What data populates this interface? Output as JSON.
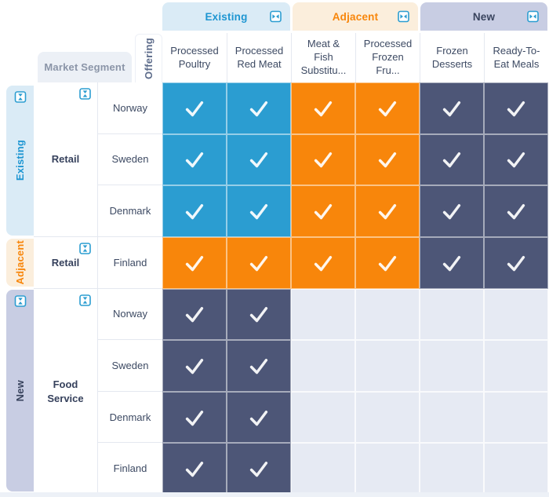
{
  "colors": {
    "existing": "#1E96D2",
    "adjacent": "#F8860B",
    "new": "#39445E",
    "existing_band_bg": "#DAEBF6",
    "adjacent_band_bg": "#FBEEDC",
    "new_band_bg": "#C8CDE3",
    "cell_blue": "#2B9DD1",
    "cell_orange": "#F8860B",
    "cell_dark": "#4D5677",
    "cell_empty": "#E6EAF3",
    "icon_blue": "#2B9DD1",
    "check_white": "rgba(255,255,255,0.93)"
  },
  "icons": {
    "collapse_horizontal": "collapse-columns-icon",
    "collapse_vertical": "collapse-rows-icon",
    "check": "check-icon"
  },
  "top_axis": {
    "axis_label": "Offering",
    "groups": [
      {
        "label": "Existing",
        "tone": "existing",
        "columns": [
          "Processed Poultry",
          "Processed Red Meat"
        ]
      },
      {
        "label": "Adjacent",
        "tone": "adjacent",
        "columns": [
          "Meat & Fish Substitu...",
          "Processed Frozen Fru..."
        ]
      },
      {
        "label": "New",
        "tone": "new",
        "columns": [
          "Frozen Desserts",
          "Ready-To-Eat Meals"
        ]
      }
    ]
  },
  "left_axis": {
    "header": "Market Segment",
    "groups": [
      {
        "label": "Existing",
        "tone": "existing",
        "segment": "Retail",
        "rows": [
          "Norway",
          "Sweden",
          "Denmark"
        ]
      },
      {
        "label": "Adjacent",
        "tone": "adjacent",
        "segment": "Retail",
        "rows": [
          "Finland"
        ]
      },
      {
        "label": "New",
        "tone": "new",
        "segment": "Food Service",
        "rows": [
          "Norway",
          "Sweden",
          "Denmark",
          "Finland"
        ]
      }
    ]
  },
  "matrix": {
    "rows": [
      {
        "segment": "Retail",
        "region": "Norway",
        "cells": [
          "blue",
          "blue",
          "orange",
          "orange",
          "dark",
          "dark"
        ]
      },
      {
        "segment": "Retail",
        "region": "Sweden",
        "cells": [
          "blue",
          "blue",
          "orange",
          "orange",
          "dark",
          "dark"
        ]
      },
      {
        "segment": "Retail",
        "region": "Denmark",
        "cells": [
          "blue",
          "blue",
          "orange",
          "orange",
          "dark",
          "dark"
        ]
      },
      {
        "segment": "Retail",
        "region": "Finland",
        "cells": [
          "orange",
          "orange",
          "orange",
          "orange",
          "dark",
          "dark"
        ]
      },
      {
        "segment": "Food Service",
        "region": "Norway",
        "cells": [
          "dark",
          "dark",
          "empty",
          "empty",
          "empty",
          "empty"
        ]
      },
      {
        "segment": "Food Service",
        "region": "Sweden",
        "cells": [
          "dark",
          "dark",
          "empty",
          "empty",
          "empty",
          "empty"
        ]
      },
      {
        "segment": "Food Service",
        "region": "Denmark",
        "cells": [
          "dark",
          "dark",
          "empty",
          "empty",
          "empty",
          "empty"
        ]
      },
      {
        "segment": "Food Service",
        "region": "Finland",
        "cells": [
          "dark",
          "dark",
          "empty",
          "empty",
          "empty",
          "empty"
        ]
      }
    ]
  }
}
